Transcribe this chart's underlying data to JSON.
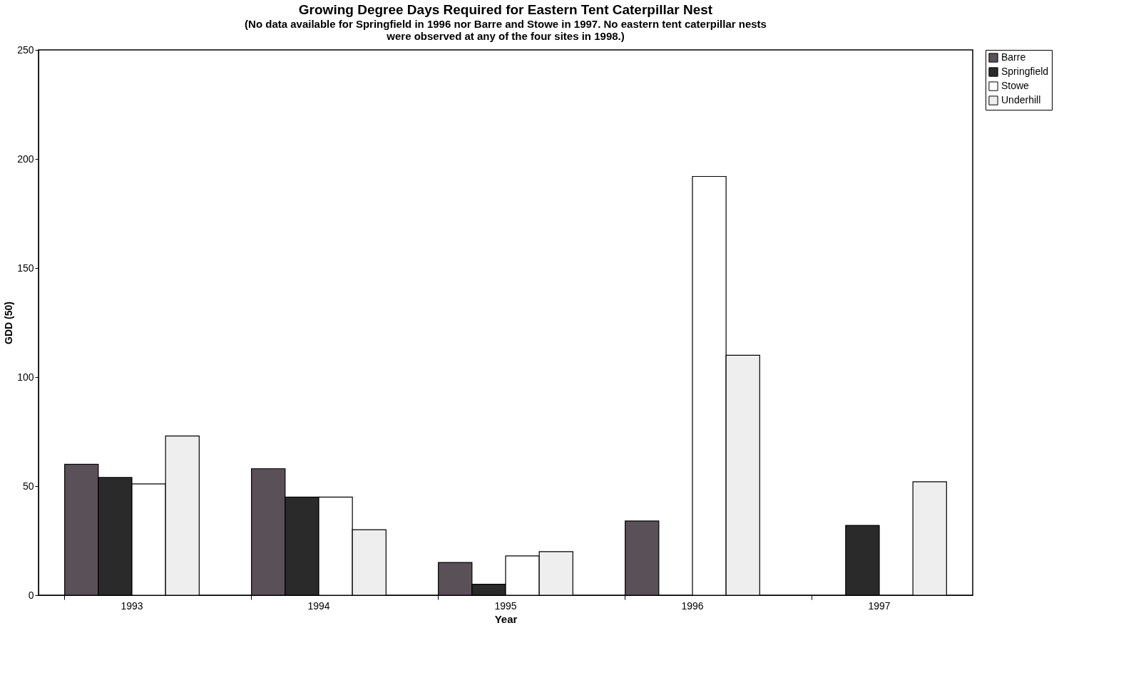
{
  "chart_data": {
    "type": "bar",
    "title": "Growing Degree Days Required for Eastern Tent Caterpillar Nest",
    "subtitle": "(No data available for Springfield in 1996 nor Barre and Stowe in 1997.  No eastern tent caterpillar nests were observed at any of the four sites in 1998.)",
    "xlabel": "Year",
    "ylabel": "GDD (50)",
    "categories": [
      "1993",
      "1994",
      "1995",
      "1996",
      "1997"
    ],
    "series": [
      {
        "name": "Barre",
        "color": "#5a5058",
        "values": [
          60,
          58,
          15,
          34,
          null
        ]
      },
      {
        "name": "Springfield",
        "color": "#2a2a2a",
        "values": [
          54,
          45,
          5,
          null,
          32
        ]
      },
      {
        "name": "Stowe",
        "color": "#ffffff",
        "values": [
          51,
          45,
          18,
          192,
          null
        ]
      },
      {
        "name": "Underhill",
        "color": "#eeeeee",
        "values": [
          73,
          30,
          20,
          110,
          52
        ]
      }
    ],
    "ylim": [
      0,
      250
    ],
    "yticks": [
      0,
      50,
      100,
      150,
      200,
      250
    ],
    "grid": false,
    "legend": "right"
  }
}
